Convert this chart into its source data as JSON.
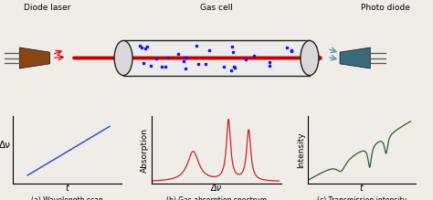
{
  "bg_color": "#f0ede8",
  "title_top_left": "Diode laser",
  "title_top_mid": "Gas cell",
  "title_top_right": "Photo diode",
  "label_a": "(a) Wavelength scan",
  "label_b": "(b) Gas absorption spectrum",
  "label_c": "(c) Transmission intensity",
  "ylabel_a": "Δν",
  "xlabel_a": "t",
  "ylabel_b": "Absorption",
  "xlabel_b": "Δν",
  "ylabel_c": "Intensity",
  "xlabel_c": "t",
  "line_color_a": "#3355cc",
  "line_color_b": "#cc2222",
  "line_color_c": "#2a5e2a",
  "arrow_color": "#cc0000",
  "dots_color": "#1a1aee",
  "laser_color": "#8b4513",
  "pd_color": "#3a6b7a",
  "pin_color": "#555555"
}
